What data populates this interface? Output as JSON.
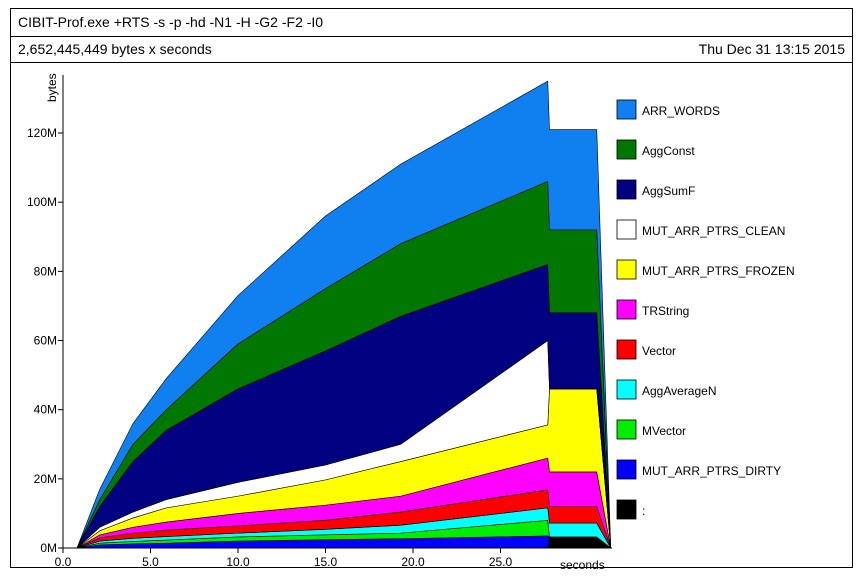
{
  "header": {
    "title": "CIBIT-Prof.exe +RTS -s -p -hd -N1 -H -G2 -F2 -I0",
    "total": "2,652,445,449 bytes x seconds",
    "date": "Thu Dec 31 13:15 2015"
  },
  "chart_data": {
    "type": "area",
    "stacked": true,
    "title": "CIBIT-Prof.exe +RTS -s -p -hd -N1 -H -G2 -F2 -I0",
    "xlabel": "seconds",
    "ylabel": "bytes",
    "xlim": [
      0,
      31.3
    ],
    "ylim": [
      0,
      136
    ],
    "x_ticks": [
      "0.0",
      "5.0",
      "10.0",
      "15.0",
      "20.0",
      "25.0"
    ],
    "x_tick_values": [
      0,
      5,
      10,
      15,
      20,
      25
    ],
    "y_ticks": [
      "0M",
      "20M",
      "40M",
      "60M",
      "80M",
      "100M",
      "120M"
    ],
    "y_tick_values": [
      0,
      20,
      40,
      60,
      80,
      100,
      120
    ],
    "legend_placement": "right",
    "x": [
      0,
      0.8,
      2.1,
      4,
      5.9,
      10,
      15,
      19.3,
      27.7,
      27.8,
      30.5,
      31.3
    ],
    "series_order_note": "bottom to top",
    "series": [
      {
        "name": ":",
        "color": "#000000",
        "values": [
          0,
          0,
          0,
          0,
          0,
          0,
          0,
          0,
          0,
          3.2,
          3.2,
          0
        ]
      },
      {
        "name": "MUT_ARR_PTRS_DIRTY",
        "color": "#0000ff",
        "values": [
          0,
          0,
          0.9,
          1.2,
          1.4,
          2,
          2.4,
          2.7,
          3.5,
          0,
          0,
          0
        ]
      },
      {
        "name": "MVector",
        "color": "#00ee00",
        "values": [
          0,
          0,
          0.5,
          0.7,
          0.9,
          1.2,
          1.4,
          1.6,
          4.5,
          0,
          0,
          0
        ]
      },
      {
        "name": "AggAverageN",
        "color": "#00ffff",
        "values": [
          0,
          0,
          0.6,
          0.9,
          1,
          1.1,
          1.6,
          2.3,
          3.6,
          4,
          4,
          0
        ]
      },
      {
        "name": "Vector",
        "color": "#ff0000",
        "values": [
          0,
          0,
          0.9,
          1.5,
          1.9,
          2.1,
          2.6,
          3.8,
          5.2,
          4.8,
          4.8,
          0
        ]
      },
      {
        "name": "TRString",
        "color": "#ff00ff",
        "values": [
          0,
          0,
          0.9,
          1.7,
          2.3,
          3.6,
          4.4,
          4.6,
          9.2,
          10,
          10,
          0
        ]
      },
      {
        "name": "MUT_ARR_PTRS_FROZEN",
        "color": "#ffff00",
        "values": [
          0,
          0,
          1.2,
          2.7,
          4.1,
          5,
          7.3,
          10,
          9.6,
          24,
          24,
          0
        ]
      },
      {
        "name": "MUT_ARR_PTRS_CLEAN",
        "color": "#ffffff",
        "values": [
          0,
          0,
          1,
          1.7,
          2.4,
          4,
          4.3,
          5,
          24.4,
          0,
          0,
          0
        ]
      },
      {
        "name": "AggSumF",
        "color": "#000080",
        "values": [
          0,
          0,
          6,
          14.6,
          20,
          27,
          33,
          37,
          22,
          22,
          22,
          0
        ]
      },
      {
        "name": "AggConst",
        "color": "#007700",
        "values": [
          0,
          0,
          2,
          5,
          6,
          13,
          18,
          21,
          24,
          24,
          24,
          0
        ]
      },
      {
        "name": "ARR_WORDS",
        "color": "#1080f0",
        "values": [
          0,
          0,
          3,
          6,
          9,
          14,
          21,
          23,
          29,
          29,
          29,
          0
        ]
      }
    ]
  }
}
